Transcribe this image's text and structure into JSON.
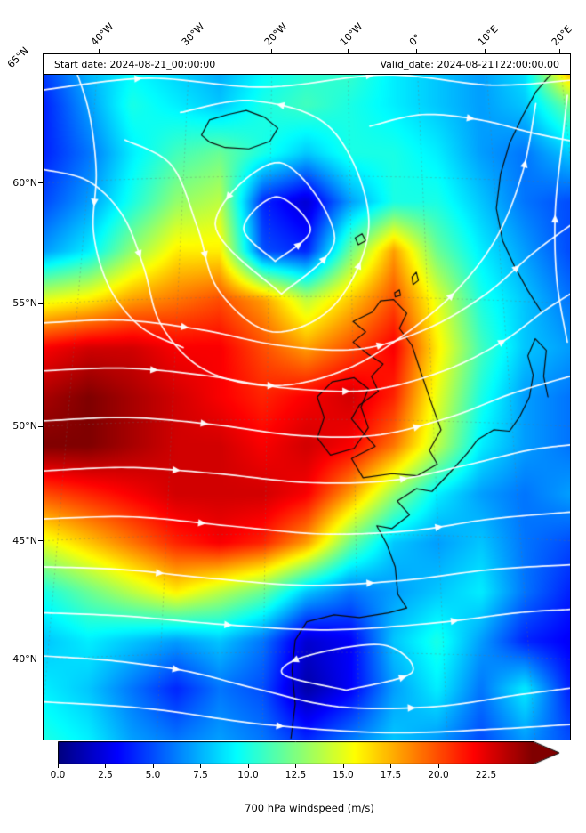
{
  "header": {
    "start_label": "Start date: 2024-08-21_00:00:00",
    "valid_label": "Valid_date: 2024-08-21T22:00:00.00"
  },
  "axes": {
    "top_ticks": [
      {
        "label": "40°W",
        "x": 0.105
      },
      {
        "label": "30°W",
        "x": 0.277
      },
      {
        "label": "20°W",
        "x": 0.434
      },
      {
        "label": "10°W",
        "x": 0.578
      },
      {
        "label": "0°",
        "x": 0.709
      },
      {
        "label": "10°E",
        "x": 0.839
      },
      {
        "label": "20°E",
        "x": 0.98
      }
    ],
    "left_ticks": [
      {
        "label": "65°N",
        "y": 0.01,
        "rotated": true
      },
      {
        "label": "60°N",
        "y": 0.188
      },
      {
        "label": "55°N",
        "y": 0.364
      },
      {
        "label": "50°N",
        "y": 0.543
      },
      {
        "label": "45°N",
        "y": 0.71
      },
      {
        "label": "40°N",
        "y": 0.883
      }
    ]
  },
  "colorbar": {
    "ticks": [
      "0.0",
      "2.5",
      "5.0",
      "7.5",
      "10.0",
      "12.5",
      "15.0",
      "17.5",
      "20.0",
      "22.5"
    ],
    "vmin": 0,
    "vmax": 25,
    "extend": "max",
    "colormap": "jet",
    "label": "700 hPa windspeed (m/s)"
  },
  "chart_data": {
    "type": "heatmap",
    "title": "700 hPa windspeed (m/s)",
    "start_date": "2024-08-21_00:00:00",
    "valid_date": "2024-08-21T22:00:00.00",
    "units": "m/s",
    "lon_range": "45°W to 20°E",
    "lat_range": "38°N to 66°N",
    "vmin": 0,
    "vmax": 25,
    "colormap": "jet",
    "grid_note": "windspeed m/s, 15 rows (north to south) x 13 cols (west to east)",
    "grid": [
      [
        5,
        8,
        9,
        8,
        7,
        9,
        10,
        11,
        9,
        8,
        7,
        9,
        20
      ],
      [
        4,
        7,
        10,
        9,
        8,
        10,
        11,
        10,
        9,
        8,
        7,
        8,
        12
      ],
      [
        4,
        6,
        9,
        11,
        12,
        10,
        8,
        10,
        10,
        9,
        7,
        6,
        8
      ],
      [
        5,
        7,
        10,
        13,
        14,
        4,
        2,
        7,
        10,
        10,
        8,
        6,
        5
      ],
      [
        7,
        9,
        13,
        16,
        16,
        5,
        4,
        12,
        18,
        12,
        9,
        7,
        5
      ],
      [
        15,
        16,
        18,
        19,
        20,
        18,
        14,
        17,
        20,
        15,
        10,
        8,
        6
      ],
      [
        22,
        23,
        23,
        22,
        22,
        20,
        18,
        20,
        22,
        16,
        11,
        8,
        7
      ],
      [
        24,
        25,
        24,
        23,
        22,
        21,
        22,
        23,
        21,
        15,
        10,
        7,
        6
      ],
      [
        25,
        25,
        24,
        23,
        23,
        22,
        23,
        22,
        19,
        14,
        9,
        7,
        6
      ],
      [
        20,
        21,
        22,
        23,
        23,
        23,
        22,
        18,
        13,
        9,
        7,
        6,
        7
      ],
      [
        15,
        17,
        19,
        21,
        22,
        21,
        18,
        12,
        8,
        7,
        8,
        6,
        5
      ],
      [
        10,
        12,
        14,
        16,
        14,
        12,
        8,
        6,
        7,
        8,
        9,
        6,
        4
      ],
      [
        8,
        9,
        8,
        7,
        8,
        6,
        2,
        3,
        8,
        10,
        7,
        4,
        3
      ],
      [
        9,
        8,
        6,
        4,
        6,
        5,
        1,
        3,
        7,
        9,
        6,
        9,
        4
      ],
      [
        10,
        9,
        7,
        6,
        7,
        6,
        4,
        6,
        8,
        7,
        5,
        7,
        5
      ]
    ],
    "streamlines": [
      {
        "points": [
          [
            0.44,
            0.302
          ],
          [
            0.507,
            0.256
          ],
          [
            0.443,
            0.208
          ],
          [
            0.38,
            0.254
          ],
          [
            0.44,
            0.302
          ]
        ],
        "arrows": [
          0.15
        ]
      },
      {
        "points": [
          [
            0.452,
            0.35
          ],
          [
            0.553,
            0.268
          ],
          [
            0.448,
            0.158
          ],
          [
            0.326,
            0.248
          ],
          [
            0.452,
            0.35
          ]
        ],
        "arrows": [
          0.15,
          0.65
        ]
      },
      {
        "points": [
          [
            0.155,
            0.125
          ],
          [
            0.243,
            0.162
          ],
          [
            0.292,
            0.252
          ],
          [
            0.333,
            0.345
          ],
          [
            0.435,
            0.405
          ],
          [
            0.556,
            0.363
          ],
          [
            0.618,
            0.243
          ],
          [
            0.548,
            0.11
          ],
          [
            0.4,
            0.068
          ],
          [
            0.26,
            0.085
          ]
        ],
        "arrows": [
          0.22,
          0.55,
          0.85
        ]
      },
      {
        "points": [
          [
            0.0,
            0.052
          ],
          [
            0.2,
            0.035
          ],
          [
            0.42,
            0.048
          ],
          [
            0.65,
            0.03
          ],
          [
            0.85,
            0.045
          ],
          [
            1.0,
            0.038
          ]
        ],
        "arrows": [
          0.18,
          0.62
        ]
      },
      {
        "points": [
          [
            0.62,
            0.105
          ],
          [
            0.72,
            0.088
          ],
          [
            0.83,
            0.096
          ],
          [
            0.93,
            0.115
          ],
          [
            1.0,
            0.126
          ]
        ],
        "arrows": [
          0.5
        ]
      },
      {
        "points": [
          [
            0.0,
            0.168
          ],
          [
            0.085,
            0.185
          ],
          [
            0.15,
            0.235
          ],
          [
            0.19,
            0.31
          ],
          [
            0.22,
            0.39
          ],
          [
            0.285,
            0.45
          ],
          [
            0.37,
            0.478
          ],
          [
            0.47,
            0.482
          ],
          [
            0.58,
            0.458
          ],
          [
            0.68,
            0.412
          ],
          [
            0.78,
            0.348
          ],
          [
            0.86,
            0.268
          ],
          [
            0.91,
            0.172
          ],
          [
            0.935,
            0.072
          ]
        ],
        "arrows": [
          0.18,
          0.45,
          0.72,
          0.92
        ]
      },
      {
        "points": [
          [
            0.05,
            0.0
          ],
          [
            0.085,
            0.08
          ],
          [
            0.1,
            0.17
          ],
          [
            0.095,
            0.26
          ],
          [
            0.125,
            0.34
          ],
          [
            0.185,
            0.398
          ],
          [
            0.265,
            0.428
          ]
        ],
        "arrows": [
          0.45
        ]
      },
      {
        "points": [
          [
            0.0,
            0.392
          ],
          [
            0.15,
            0.388
          ],
          [
            0.3,
            0.402
          ],
          [
            0.45,
            0.425
          ],
          [
            0.6,
            0.43
          ],
          [
            0.73,
            0.4
          ],
          [
            0.84,
            0.35
          ],
          [
            0.93,
            0.29
          ],
          [
            1.0,
            0.25
          ]
        ],
        "arrows": [
          0.25,
          0.6,
          0.88
        ]
      },
      {
        "points": [
          [
            0.0,
            0.462
          ],
          [
            0.15,
            0.458
          ],
          [
            0.3,
            0.468
          ],
          [
            0.46,
            0.487
          ],
          [
            0.62,
            0.49
          ],
          [
            0.76,
            0.462
          ],
          [
            0.87,
            0.42
          ],
          [
            0.95,
            0.375
          ],
          [
            1.0,
            0.35
          ]
        ],
        "arrows": [
          0.2,
          0.55,
          0.85
        ]
      },
      {
        "points": [
          [
            0.0,
            0.535
          ],
          [
            0.16,
            0.53
          ],
          [
            0.32,
            0.54
          ],
          [
            0.48,
            0.556
          ],
          [
            0.63,
            0.556
          ],
          [
            0.77,
            0.53
          ],
          [
            0.89,
            0.495
          ],
          [
            1.0,
            0.47
          ]
        ],
        "arrows": [
          0.3,
          0.7
        ]
      },
      {
        "points": [
          [
            0.0,
            0.608
          ],
          [
            0.16,
            0.603
          ],
          [
            0.33,
            0.612
          ],
          [
            0.5,
            0.625
          ],
          [
            0.66,
            0.622
          ],
          [
            0.8,
            0.6
          ],
          [
            0.92,
            0.578
          ],
          [
            1.0,
            0.57
          ]
        ],
        "arrows": [
          0.25,
          0.68
        ]
      },
      {
        "points": [
          [
            0.0,
            0.678
          ],
          [
            0.17,
            0.675
          ],
          [
            0.35,
            0.688
          ],
          [
            0.53,
            0.7
          ],
          [
            0.7,
            0.695
          ],
          [
            0.85,
            0.678
          ],
          [
            1.0,
            0.668
          ]
        ],
        "arrows": [
          0.3,
          0.75
        ]
      },
      {
        "points": [
          [
            0.0,
            0.748
          ],
          [
            0.15,
            0.752
          ],
          [
            0.32,
            0.765
          ],
          [
            0.5,
            0.775
          ],
          [
            0.68,
            0.768
          ],
          [
            0.85,
            0.752
          ],
          [
            1.0,
            0.745
          ]
        ],
        "arrows": [
          0.22,
          0.62
        ]
      },
      {
        "points": [
          [
            0.0,
            0.815
          ],
          [
            0.16,
            0.82
          ],
          [
            0.34,
            0.832
          ],
          [
            0.54,
            0.84
          ],
          [
            0.74,
            0.83
          ],
          [
            0.9,
            0.815
          ],
          [
            1.0,
            0.81
          ]
        ],
        "arrows": [
          0.35,
          0.78
        ]
      },
      {
        "points": [
          [
            0.575,
            0.928
          ],
          [
            0.7,
            0.902
          ],
          [
            0.645,
            0.862
          ],
          [
            0.5,
            0.878
          ],
          [
            0.455,
            0.905
          ],
          [
            0.575,
            0.928
          ]
        ],
        "arrows": [
          0.2,
          0.7
        ]
      },
      {
        "points": [
          [
            0.0,
            0.878
          ],
          [
            0.13,
            0.885
          ],
          [
            0.27,
            0.9
          ],
          [
            0.4,
            0.925
          ],
          [
            0.56,
            0.952
          ],
          [
            0.74,
            0.952
          ],
          [
            0.9,
            0.935
          ],
          [
            1.0,
            0.925
          ]
        ],
        "arrows": [
          0.25,
          0.7
        ]
      },
      {
        "points": [
          [
            0.0,
            0.945
          ],
          [
            0.2,
            0.955
          ],
          [
            0.42,
            0.978
          ],
          [
            0.65,
            0.99
          ],
          [
            0.85,
            0.985
          ],
          [
            1.0,
            0.978
          ]
        ],
        "arrows": [
          0.45
        ]
      },
      {
        "points": [
          [
            0.995,
            0.42
          ],
          [
            0.975,
            0.33
          ],
          [
            0.972,
            0.23
          ],
          [
            0.985,
            0.13
          ],
          [
            0.995,
            0.06
          ]
        ],
        "arrows": [
          0.5
        ]
      }
    ],
    "coastlines": [
      [
        [
          0.3,
          0.118
        ],
        [
          0.315,
          0.096
        ],
        [
          0.35,
          0.088
        ],
        [
          0.385,
          0.082
        ],
        [
          0.42,
          0.092
        ],
        [
          0.445,
          0.108
        ],
        [
          0.43,
          0.127
        ],
        [
          0.39,
          0.138
        ],
        [
          0.345,
          0.136
        ],
        [
          0.315,
          0.128
        ],
        [
          0.3,
          0.118
        ]
      ],
      [
        [
          0.665,
          0.358
        ],
        [
          0.69,
          0.378
        ],
        [
          0.676,
          0.4
        ],
        [
          0.7,
          0.425
        ],
        [
          0.715,
          0.46
        ],
        [
          0.735,
          0.505
        ],
        [
          0.755,
          0.548
        ],
        [
          0.733,
          0.578
        ],
        [
          0.748,
          0.598
        ],
        [
          0.71,
          0.615
        ],
        [
          0.662,
          0.612
        ],
        [
          0.607,
          0.618
        ],
        [
          0.585,
          0.59
        ],
        [
          0.63,
          0.572
        ],
        [
          0.607,
          0.552
        ],
        [
          0.585,
          0.532
        ],
        [
          0.6,
          0.512
        ],
        [
          0.636,
          0.492
        ],
        [
          0.623,
          0.47
        ],
        [
          0.645,
          0.452
        ],
        [
          0.617,
          0.438
        ],
        [
          0.588,
          0.42
        ],
        [
          0.612,
          0.405
        ],
        [
          0.588,
          0.39
        ],
        [
          0.625,
          0.376
        ],
        [
          0.64,
          0.36
        ],
        [
          0.665,
          0.358
        ]
      ],
      [
        [
          0.548,
          0.478
        ],
        [
          0.59,
          0.472
        ],
        [
          0.617,
          0.488
        ],
        [
          0.603,
          0.515
        ],
        [
          0.617,
          0.545
        ],
        [
          0.59,
          0.575
        ],
        [
          0.545,
          0.585
        ],
        [
          0.52,
          0.56
        ],
        [
          0.533,
          0.53
        ],
        [
          0.52,
          0.5
        ],
        [
          0.548,
          0.478
        ]
      ],
      [
        [
          0.805,
          0.582
        ],
        [
          0.77,
          0.612
        ],
        [
          0.738,
          0.638
        ],
        [
          0.708,
          0.634
        ],
        [
          0.672,
          0.652
        ],
        [
          0.695,
          0.672
        ],
        [
          0.662,
          0.692
        ],
        [
          0.633,
          0.688
        ],
        [
          0.652,
          0.715
        ],
        [
          0.668,
          0.748
        ],
        [
          0.673,
          0.788
        ],
        [
          0.69,
          0.808
        ],
        [
          0.655,
          0.815
        ],
        [
          0.6,
          0.822
        ],
        [
          0.552,
          0.818
        ],
        [
          0.5,
          0.828
        ],
        [
          0.478,
          0.855
        ],
        [
          0.472,
          0.9
        ],
        [
          0.478,
          0.948
        ],
        [
          0.47,
          0.998
        ]
      ],
      [
        [
          0.805,
          0.582
        ],
        [
          0.825,
          0.562
        ],
        [
          0.855,
          0.548
        ],
        [
          0.885,
          0.55
        ],
        [
          0.905,
          0.528
        ],
        [
          0.923,
          0.5
        ],
        [
          0.93,
          0.468
        ],
        [
          0.92,
          0.44
        ],
        [
          0.934,
          0.415
        ],
        [
          0.955,
          0.432
        ],
        [
          0.95,
          0.47
        ],
        [
          0.958,
          0.5
        ]
      ],
      [
        [
          0.965,
          0.028
        ],
        [
          0.935,
          0.055
        ],
        [
          0.91,
          0.09
        ],
        [
          0.885,
          0.13
        ],
        [
          0.868,
          0.175
        ],
        [
          0.86,
          0.225
        ],
        [
          0.872,
          0.272
        ],
        [
          0.895,
          0.31
        ],
        [
          0.92,
          0.345
        ],
        [
          0.945,
          0.375
        ]
      ],
      [
        [
          0.592,
          0.268
        ],
        [
          0.605,
          0.262
        ],
        [
          0.612,
          0.272
        ],
        [
          0.598,
          0.278
        ],
        [
          0.592,
          0.268
        ]
      ],
      [
        [
          0.7,
          0.325
        ],
        [
          0.708,
          0.318
        ],
        [
          0.712,
          0.33
        ],
        [
          0.702,
          0.336
        ],
        [
          0.7,
          0.325
        ]
      ],
      [
        [
          0.667,
          0.348
        ],
        [
          0.676,
          0.344
        ],
        [
          0.678,
          0.352
        ],
        [
          0.668,
          0.354
        ],
        [
          0.667,
          0.348
        ]
      ]
    ]
  }
}
